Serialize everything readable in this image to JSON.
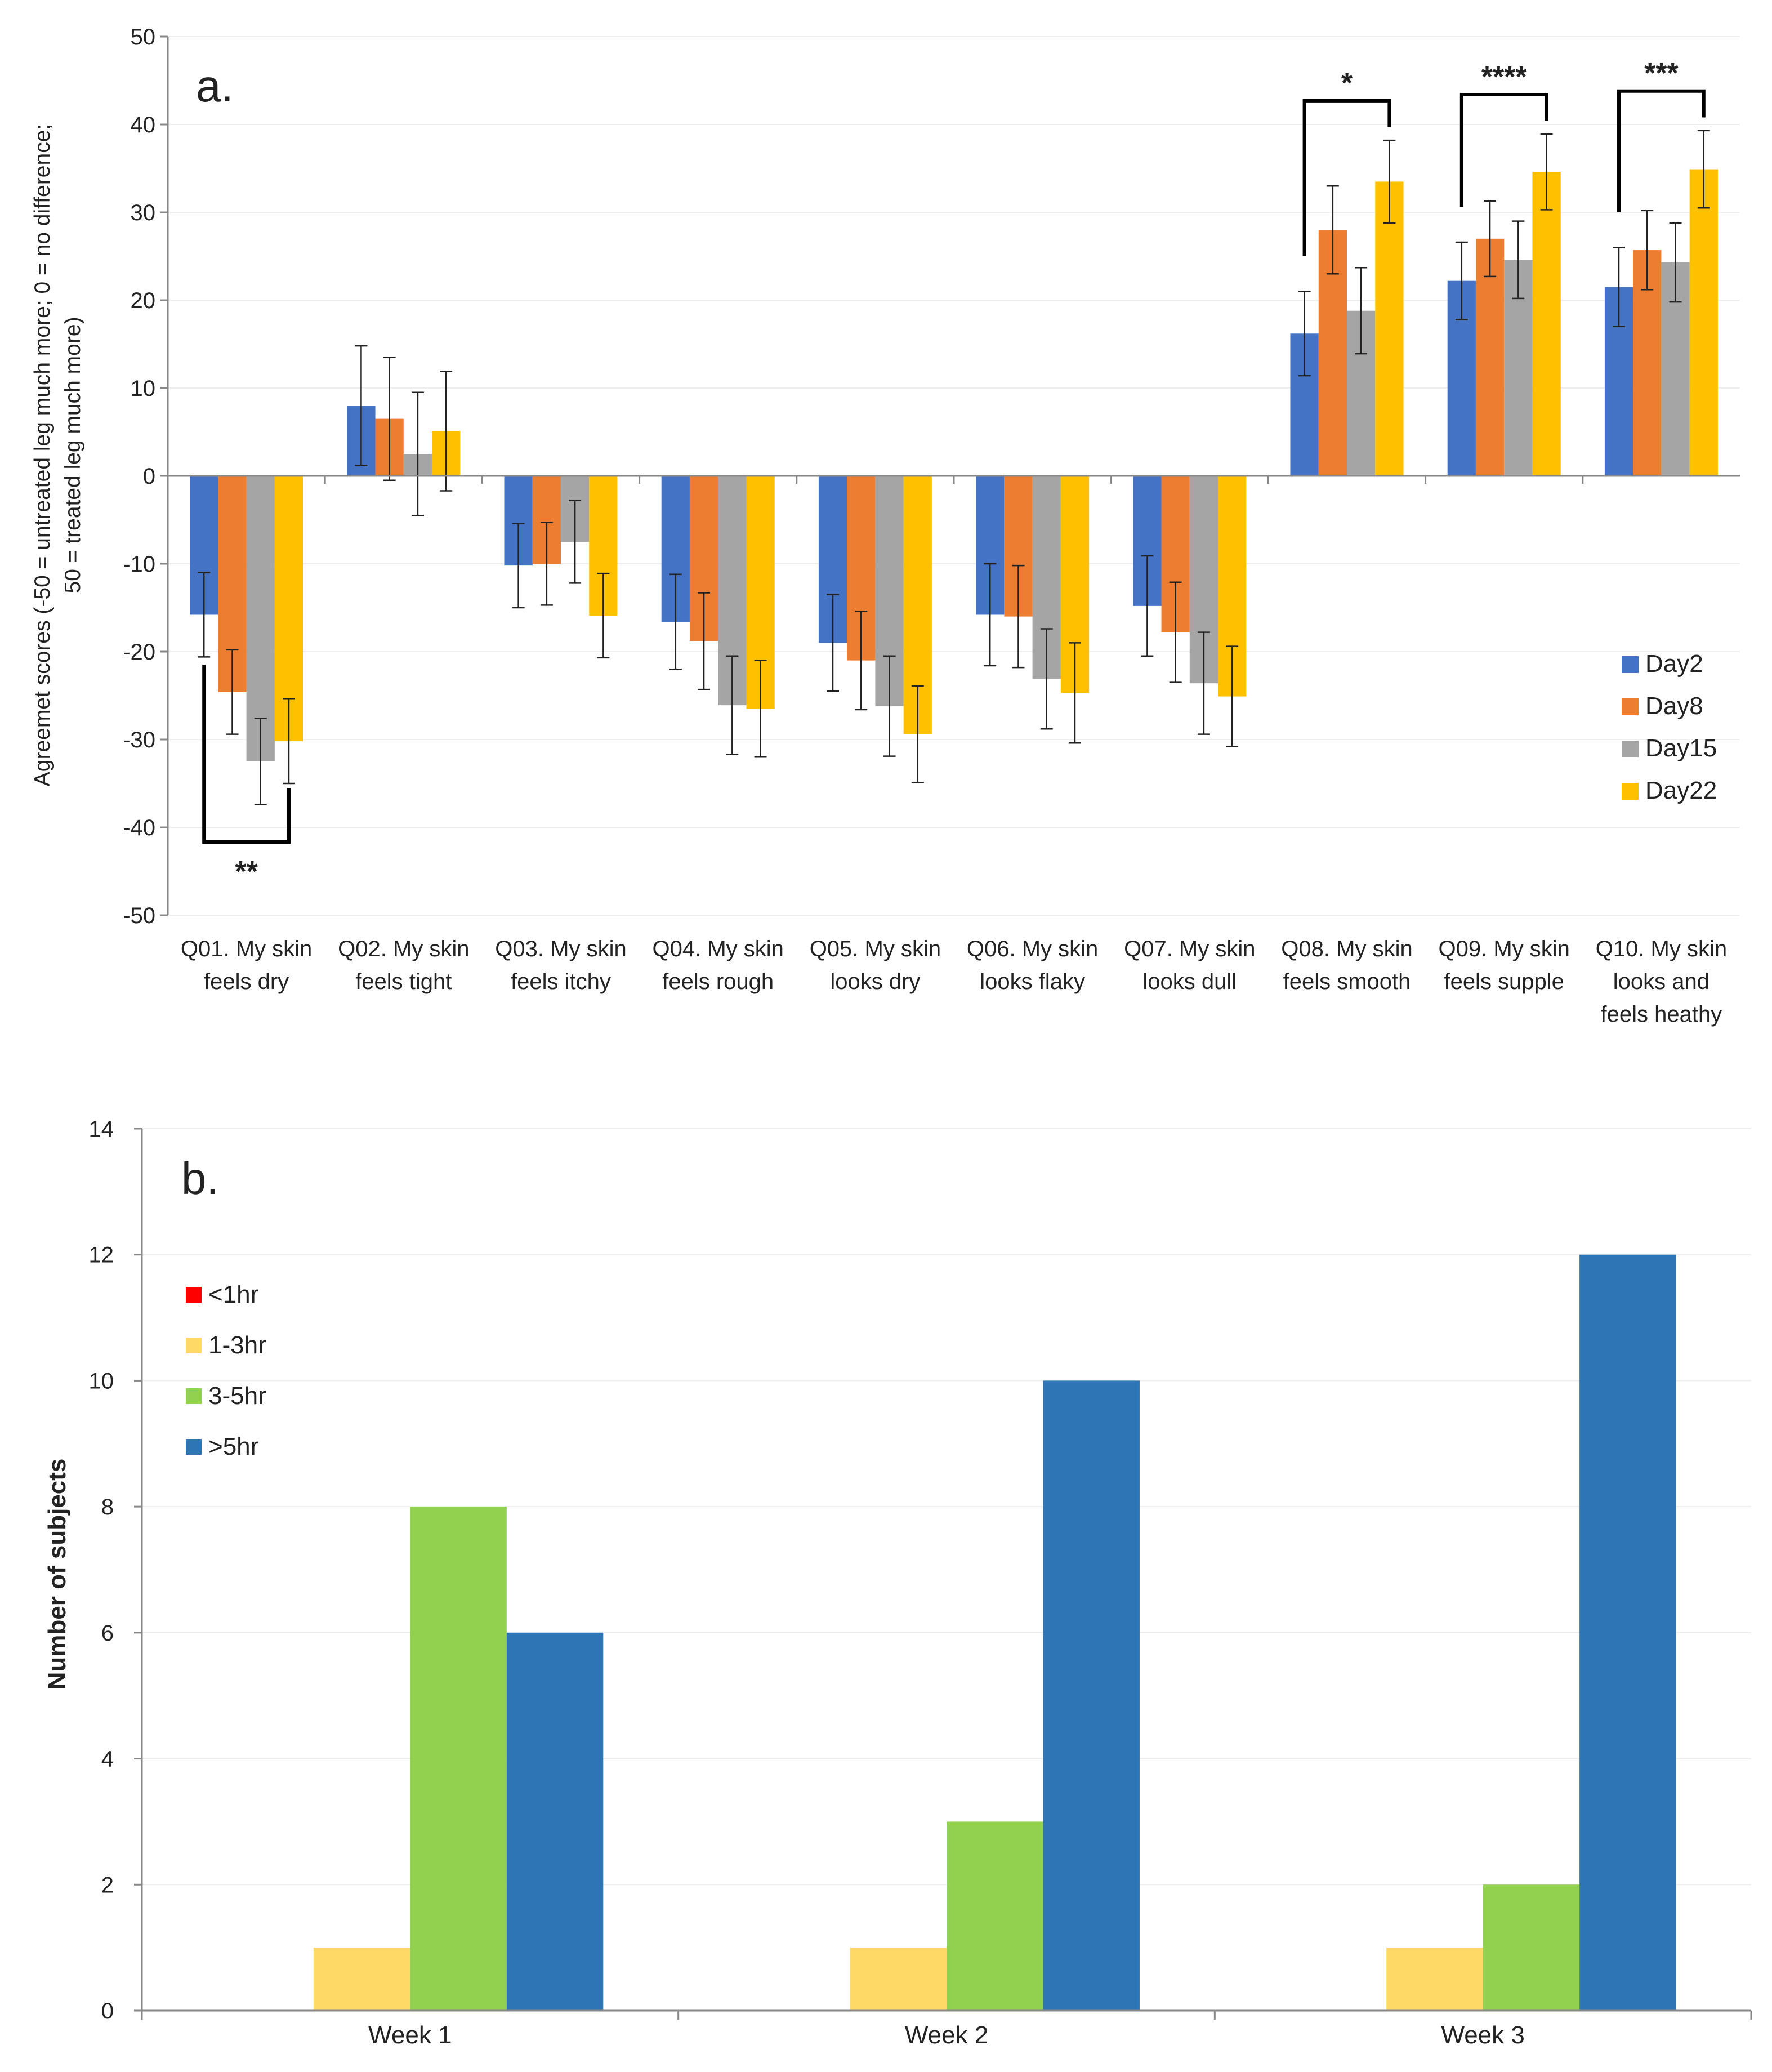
{
  "chart_data": [
    {
      "type": "bar",
      "panel_label": "a.",
      "title": "",
      "ylabel": "Agreemet scores (-50 = untreated leg much more; 0 = no difference; 50 = treated leg much more)",
      "ylabel_lines": [
        "Agreemet scores (-50 = untreated leg much more; 0 = no difference;",
        "50 = treated leg much more)"
      ],
      "xlabel": "",
      "ylim": [
        -50,
        50
      ],
      "yticks": [
        50,
        40,
        30,
        20,
        10,
        0,
        -10,
        -20,
        -30,
        -40,
        -50
      ],
      "categories": [
        "Q01. My skin feels dry",
        "Q02. My skin feels tight",
        "Q03. My skin feels itchy",
        "Q04. My skin feels rough",
        "Q05. My skin looks dry",
        "Q06. My skin looks flaky",
        "Q07. My skin looks dull",
        "Q08. My skin feels smooth",
        "Q09. My skin feels supple",
        "Q10. My skin looks and feels heathy"
      ],
      "category_lines": [
        [
          "Q01. My skin",
          "feels dry"
        ],
        [
          "Q02. My skin",
          "feels tight"
        ],
        [
          "Q03. My skin",
          "feels itchy"
        ],
        [
          "Q04. My skin",
          "feels rough"
        ],
        [
          "Q05. My skin",
          "looks dry"
        ],
        [
          "Q06. My skin",
          "looks flaky"
        ],
        [
          "Q07. My skin",
          "looks dull"
        ],
        [
          "Q08. My skin",
          "feels smooth"
        ],
        [
          "Q09. My skin",
          "feels supple"
        ],
        [
          "Q10. My skin",
          "looks and",
          "feels heathy"
        ]
      ],
      "series": [
        {
          "name": "Day2",
          "color": "#4472C4",
          "values": [
            -15.8,
            8.0,
            -10.2,
            -16.6,
            -19.0,
            -15.8,
            -14.8,
            16.2,
            22.2,
            21.5
          ],
          "errors": [
            4.8,
            6.8,
            4.8,
            5.4,
            5.5,
            5.8,
            5.7,
            4.8,
            4.4,
            4.5
          ]
        },
        {
          "name": "Day8",
          "color": "#ED7D31",
          "values": [
            -24.6,
            6.5,
            -10.0,
            -18.8,
            -21.0,
            -16.0,
            -17.8,
            28.0,
            27.0,
            25.7
          ],
          "errors": [
            4.8,
            7.0,
            4.7,
            5.5,
            5.6,
            5.8,
            5.7,
            5.0,
            4.3,
            4.5
          ]
        },
        {
          "name": "Day15",
          "color": "#A5A5A5",
          "values": [
            -32.5,
            2.5,
            -7.5,
            -26.1,
            -26.2,
            -23.1,
            -23.6,
            18.8,
            24.6,
            24.3
          ],
          "errors": [
            4.9,
            7.0,
            4.7,
            5.6,
            5.7,
            5.7,
            5.8,
            4.9,
            4.4,
            4.5
          ]
        },
        {
          "name": "Day22",
          "color": "#FFC000",
          "values": [
            -30.2,
            5.1,
            -15.9,
            -26.5,
            -29.4,
            -24.7,
            -25.1,
            33.5,
            34.6,
            34.9
          ],
          "errors": [
            4.8,
            6.8,
            4.8,
            5.5,
            5.5,
            5.7,
            5.7,
            4.7,
            4.3,
            4.4
          ]
        }
      ],
      "legend": [
        "Day2",
        "Day8",
        "Day15",
        "Day22"
      ],
      "legend_position": "right",
      "grid": true,
      "annotations": [
        {
          "label": "**",
          "category_index": 0,
          "from_series": 0,
          "to_series": 3,
          "side": "below"
        },
        {
          "label": "*",
          "category_index": 7,
          "from_series": 0,
          "to_series": 3,
          "side": "above"
        },
        {
          "label": "****",
          "category_index": 8,
          "from_series": 0,
          "to_series": 3,
          "side": "above"
        },
        {
          "label": "***",
          "category_index": 9,
          "from_series": 0,
          "to_series": 3,
          "side": "above"
        }
      ]
    },
    {
      "type": "bar",
      "panel_label": "b.",
      "title": "",
      "ylabel": "Number of subjects",
      "xlabel": "",
      "ylim": [
        0,
        14
      ],
      "yticks": [
        14,
        12,
        10,
        8,
        6,
        4,
        2,
        0
      ],
      "categories": [
        "Week 1",
        "Week 2",
        "Week 3"
      ],
      "series": [
        {
          "name": "<1hr",
          "color": "#FF0000",
          "values": [
            0,
            0,
            0
          ]
        },
        {
          "name": "1-3hr",
          "color": "#FFD966",
          "values": [
            1,
            1,
            1
          ]
        },
        {
          "name": "3-5hr",
          "color": "#92D050",
          "values": [
            8,
            3,
            2
          ]
        },
        {
          "name": ">5hr",
          "color": "#2E75B6",
          "values": [
            6,
            10,
            12
          ]
        }
      ],
      "legend": [
        "<1hr",
        "1-3hr",
        "3-5hr",
        ">5hr"
      ],
      "legend_position": "top-left",
      "grid": true
    }
  ]
}
